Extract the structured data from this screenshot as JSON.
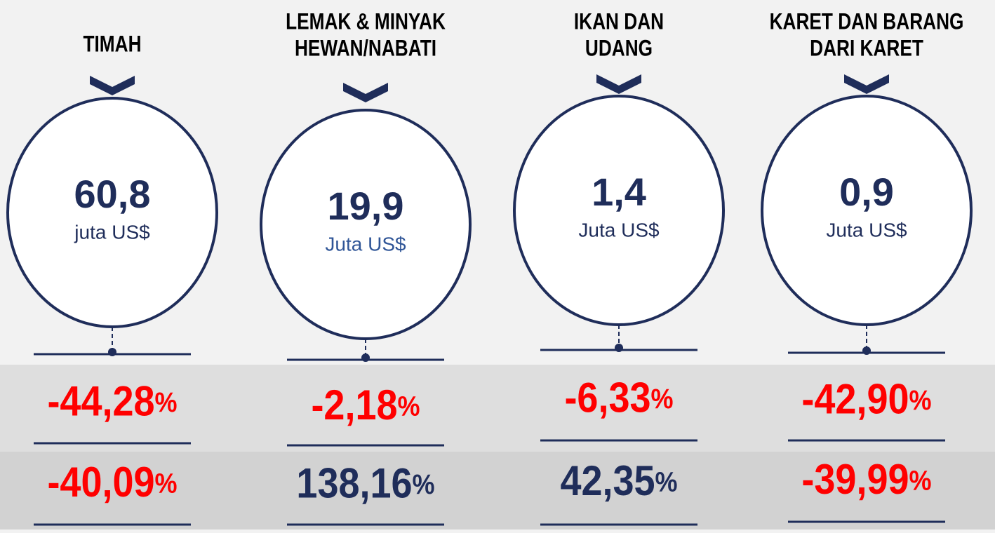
{
  "columns": [
    {
      "title": [
        "TIMAH"
      ],
      "value": "60,8",
      "unit": "juta US$",
      "change1": {
        "text": "-44,28",
        "suffix": "%",
        "color": "#ff0000"
      },
      "change2": {
        "text": "-40,09",
        "suffix": "%",
        "color": "#ff0000"
      }
    },
    {
      "title": [
        "LEMAK & MINYAK",
        "HEWAN/NABATI"
      ],
      "value": "19,9",
      "unit": "Juta US$",
      "change1": {
        "text": "-2,18",
        "suffix": "%",
        "color": "#ff0000"
      },
      "change2": {
        "text": "138,16",
        "suffix": "%",
        "color": "#1f2d5a"
      }
    },
    {
      "title": [
        "IKAN DAN",
        "UDANG"
      ],
      "value": "1,4",
      "unit": "Juta US$",
      "change1": {
        "text": "-6,33",
        "suffix": "%",
        "color": "#ff0000"
      },
      "change2": {
        "text": "42,35",
        "suffix": "%",
        "color": "#1f2d5a"
      }
    },
    {
      "title": [
        "KARET DAN BARANG",
        "DARI KARET"
      ],
      "value": "0,9",
      "unit": "Juta US$",
      "change1": {
        "text": "-42,90",
        "suffix": "%",
        "color": "#ff0000"
      },
      "change2": {
        "text": "-39,99",
        "suffix": "%",
        "color": "#ff0000"
      }
    }
  ]
}
